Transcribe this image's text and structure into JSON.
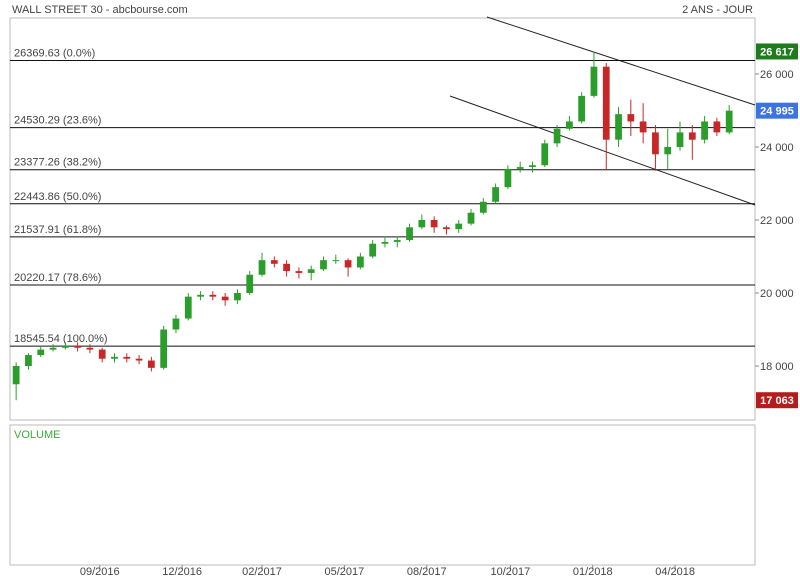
{
  "chart_data": {
    "type": "candlestick",
    "title": "WALL STREET 30 - abcbourse.com",
    "period": "2 ANS - JOUR",
    "volume_label": "VOLUME",
    "up_color": "#2a9d2a",
    "down_color": "#c62828",
    "xlim": [
      -0.5,
      60.1
    ],
    "xticks": [
      {
        "value": 6.8,
        "label": "09/2016"
      },
      {
        "value": 13.5,
        "label": "12/2016"
      },
      {
        "value": 20,
        "label": "02/2017"
      },
      {
        "value": 26.7,
        "label": "05/2017"
      },
      {
        "value": 33.4,
        "label": "08/2017"
      },
      {
        "value": 40.2,
        "label": "10/2017"
      },
      {
        "value": 46.9,
        "label": "01/2018"
      },
      {
        "value": 53.6,
        "label": "04/2018"
      }
    ],
    "ylim": [
      16521,
      27534
    ],
    "yticks": [
      {
        "value": 18000,
        "label": "18 000"
      },
      {
        "value": 20000,
        "label": "20 000"
      },
      {
        "value": 22000,
        "label": "22 000"
      },
      {
        "value": 24000,
        "label": "24 000"
      },
      {
        "value": 26000,
        "label": "26 000"
      }
    ],
    "fib_levels": [
      {
        "value": 26369.63,
        "label": "26369.63  (0.0%)"
      },
      {
        "value": 24530.29,
        "label": "24530.29  (23.6%)"
      },
      {
        "value": 23377.26,
        "label": "23377.26  (38.2%)"
      },
      {
        "value": 22443.86,
        "label": "22443.86  (50.0%)"
      },
      {
        "value": 21537.91,
        "label": "21537.91  (61.8%)"
      },
      {
        "value": 20220.17,
        "label": "20220.17  (78.6%)"
      },
      {
        "value": 18545.54,
        "label": "18545.54  (100.0%)"
      }
    ],
    "value_tags": [
      {
        "value": 26617,
        "label": "26 617",
        "color": "#1e7b1e"
      },
      {
        "value": 24995,
        "label": "24 995",
        "color": "#3b73e0"
      },
      {
        "value": 17063,
        "label": "17 063",
        "color": "#b71c1c"
      }
    ],
    "open": [
      17500,
      18000,
      18300,
      18450,
      18500,
      18550,
      18500,
      18450,
      18200,
      18250,
      18200,
      18150,
      17950,
      19000,
      19300,
      19900,
      19950,
      19900,
      19800,
      20000,
      20500,
      20900,
      20800,
      20600,
      20550,
      20650,
      20900,
      20900,
      20700,
      21000,
      21350,
      21400,
      21450,
      21800,
      22000,
      21800,
      21750,
      21900,
      22200,
      22500,
      22900,
      23400,
      23450,
      23500,
      24100,
      24500,
      24700,
      25400,
      26200,
      24200,
      24900,
      24700,
      24400,
      23800,
      24000,
      24400,
      24200,
      24700,
      24400
    ],
    "high": [
      18100,
      18350,
      18550,
      18600,
      18650,
      18650,
      18600,
      18500,
      18350,
      18350,
      18300,
      18250,
      19100,
      19400,
      20000,
      20050,
      20050,
      20000,
      20100,
      20600,
      21100,
      21000,
      20900,
      20700,
      20750,
      21000,
      21050,
      20950,
      21100,
      21450,
      21550,
      21550,
      21900,
      22150,
      22100,
      21850,
      22000,
      22300,
      22600,
      23000,
      23500,
      23600,
      23600,
      24200,
      24600,
      24850,
      25500,
      26617,
      26300,
      25100,
      25300,
      25200,
      24600,
      24500,
      24700,
      24600,
      24850,
      24800,
      25150
    ],
    "low": [
      17063,
      17900,
      18250,
      18400,
      18450,
      18400,
      18350,
      18100,
      18100,
      18100,
      18050,
      17850,
      17900,
      18900,
      19250,
      19800,
      19800,
      19650,
      19700,
      19950,
      20450,
      20700,
      20450,
      20400,
      20350,
      20600,
      20800,
      20450,
      20650,
      20950,
      21250,
      21250,
      21400,
      21750,
      21650,
      21600,
      21650,
      21850,
      22150,
      22450,
      22850,
      23300,
      23300,
      23450,
      24000,
      24450,
      24650,
      25350,
      23360,
      24000,
      24300,
      24100,
      23350,
      23400,
      23900,
      23650,
      24100,
      24300,
      24350
    ],
    "close": [
      18000,
      18300,
      18450,
      18500,
      18550,
      18500,
      18450,
      18200,
      18250,
      18200,
      18150,
      17950,
      19000,
      19300,
      19900,
      19950,
      19900,
      19800,
      20000,
      20500,
      20900,
      20800,
      20600,
      20550,
      20650,
      20900,
      20900,
      20700,
      21000,
      21350,
      21400,
      21450,
      21800,
      22000,
      21800,
      21750,
      21900,
      22200,
      22500,
      22900,
      23400,
      23450,
      23500,
      24100,
      24500,
      24700,
      25400,
      26200,
      24200,
      24900,
      24700,
      24400,
      23800,
      24000,
      24400,
      24200,
      24700,
      24400,
      24995
    ]
  }
}
